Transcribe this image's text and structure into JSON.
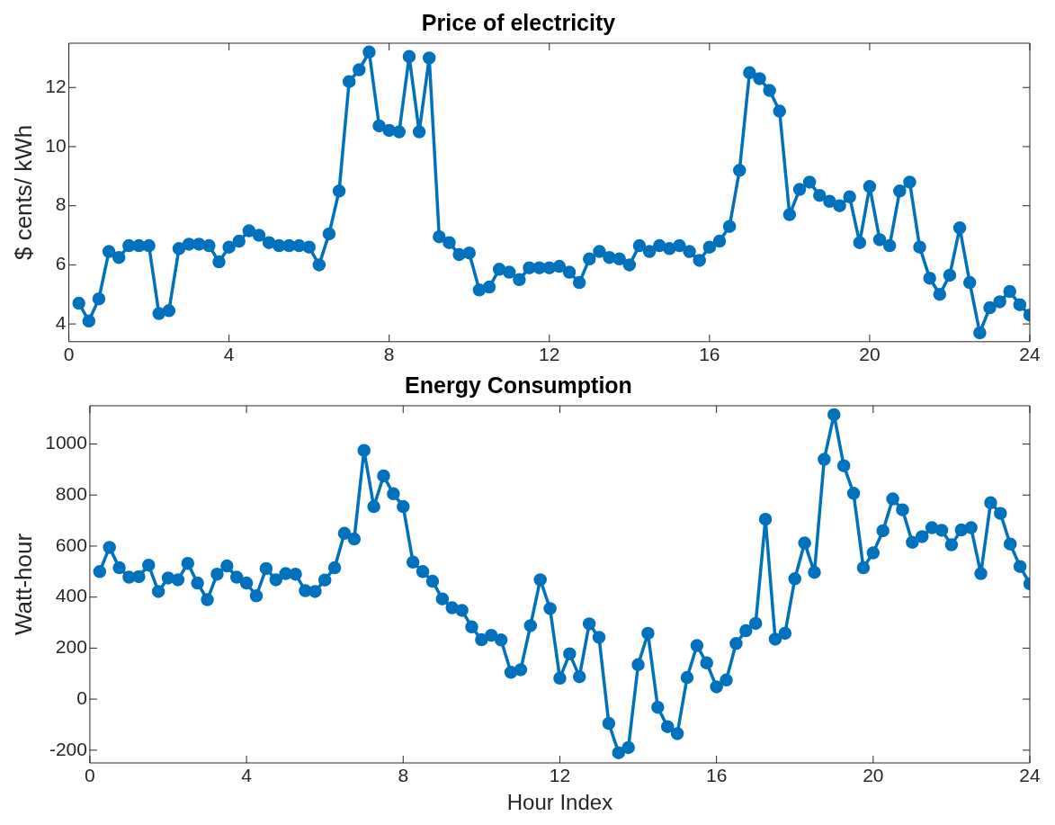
{
  "chart_data": [
    {
      "type": "line",
      "title": "Price of electricity",
      "ylabel": "$ cents/ kWh",
      "x": [
        0.25,
        0.5,
        0.75,
        1,
        1.25,
        1.5,
        1.75,
        2,
        2.25,
        2.5,
        2.75,
        3,
        3.25,
        3.5,
        3.75,
        4,
        4.25,
        4.5,
        4.75,
        5,
        5.25,
        5.5,
        5.75,
        6,
        6.25,
        6.5,
        6.75,
        7,
        7.25,
        7.5,
        7.75,
        8,
        8.25,
        8.5,
        8.75,
        9,
        9.25,
        9.5,
        9.75,
        10,
        10.25,
        10.5,
        10.75,
        11,
        11.25,
        11.5,
        11.75,
        12,
        12.25,
        12.5,
        12.75,
        13,
        13.25,
        13.5,
        13.75,
        14,
        14.25,
        14.5,
        14.75,
        15,
        15.25,
        15.5,
        15.75,
        16,
        16.25,
        16.5,
        16.75,
        17,
        17.25,
        17.5,
        17.75,
        18,
        18.25,
        18.5,
        18.75,
        19,
        19.25,
        19.5,
        19.75,
        20,
        20.25,
        20.5,
        20.75,
        21,
        21.25,
        21.5,
        21.75,
        22,
        22.25,
        22.5,
        22.75,
        23,
        23.25,
        23.5,
        23.75,
        24
      ],
      "series": [
        {
          "color": "#0072bd",
          "values": [
            4.7,
            4.1,
            4.85,
            6.45,
            6.25,
            6.65,
            6.65,
            6.65,
            4.35,
            4.45,
            6.55,
            6.7,
            6.7,
            6.65,
            6.1,
            6.6,
            6.8,
            7.15,
            7.0,
            6.75,
            6.65,
            6.65,
            6.65,
            6.6,
            6.0,
            7.05,
            8.5,
            12.2,
            12.6,
            13.2,
            10.7,
            10.55,
            10.5,
            13.05,
            10.5,
            13.0,
            6.95,
            6.75,
            6.35,
            6.4,
            5.15,
            5.25,
            5.85,
            5.75,
            5.5,
            5.9,
            5.9,
            5.9,
            5.95,
            5.75,
            5.4,
            6.2,
            6.45,
            6.25,
            6.2,
            6.0,
            6.65,
            6.45,
            6.65,
            6.55,
            6.65,
            6.45,
            6.15,
            6.6,
            6.8,
            7.3,
            9.2,
            12.5,
            12.3,
            11.9,
            11.2,
            7.7,
            8.55,
            8.8,
            8.35,
            8.15,
            8.0,
            8.3,
            6.75,
            8.65,
            6.85,
            6.65,
            8.5,
            8.8,
            6.6,
            5.55,
            5.0,
            5.65,
            7.25,
            5.4,
            3.7,
            4.55,
            4.75,
            5.1,
            4.65,
            4.3
          ]
        }
      ],
      "xlim": [
        0,
        24
      ],
      "xticks": [
        0,
        4,
        8,
        12,
        16,
        20,
        24
      ],
      "ylim": [
        3.4,
        13.5
      ],
      "yticks": [
        4,
        6,
        8,
        10,
        12
      ],
      "grid": false,
      "legend": false,
      "marker": "circle",
      "line_style": "solid"
    },
    {
      "type": "line",
      "title": "Energy Consumption",
      "xlabel": "Hour Index",
      "ylabel": "Watt-hour",
      "x": [
        0.25,
        0.5,
        0.75,
        1,
        1.25,
        1.5,
        1.75,
        2,
        2.25,
        2.5,
        2.75,
        3,
        3.25,
        3.5,
        3.75,
        4,
        4.25,
        4.5,
        4.75,
        5,
        5.25,
        5.5,
        5.75,
        6,
        6.25,
        6.5,
        6.75,
        7,
        7.25,
        7.5,
        7.75,
        8,
        8.25,
        8.5,
        8.75,
        9,
        9.25,
        9.5,
        9.75,
        10,
        10.25,
        10.5,
        10.75,
        11,
        11.25,
        11.5,
        11.75,
        12,
        12.25,
        12.5,
        12.75,
        13,
        13.25,
        13.5,
        13.75,
        14,
        14.25,
        14.5,
        14.75,
        15,
        15.25,
        15.5,
        15.75,
        16,
        16.25,
        16.5,
        16.75,
        17,
        17.25,
        17.5,
        17.75,
        18,
        18.25,
        18.5,
        18.75,
        19,
        19.25,
        19.5,
        19.75,
        20,
        20.25,
        20.5,
        20.75,
        21,
        21.25,
        21.5,
        21.75,
        22,
        22.25,
        22.5,
        22.75,
        23,
        23.25,
        23.5,
        23.75,
        24
      ],
      "series": [
        {
          "color": "#0072bd",
          "values": [
            500,
            595,
            515,
            478,
            480,
            525,
            422,
            475,
            468,
            532,
            455,
            390,
            490,
            522,
            478,
            455,
            405,
            512,
            468,
            492,
            490,
            425,
            422,
            467,
            515,
            650,
            628,
            975,
            755,
            875,
            805,
            755,
            537,
            500,
            462,
            393,
            358,
            348,
            283,
            233,
            250,
            232,
            105,
            115,
            288,
            468,
            355,
            82,
            178,
            88,
            295,
            242,
            -95,
            -210,
            -190,
            135,
            258,
            -32,
            -108,
            -135,
            85,
            210,
            142,
            48,
            75,
            218,
            268,
            297,
            705,
            235,
            258,
            472,
            612,
            497,
            940,
            1115,
            915,
            807,
            515,
            573,
            660,
            785,
            742,
            615,
            637,
            672,
            662,
            605,
            663,
            672,
            492,
            770,
            728,
            608,
            520,
            452
          ]
        }
      ],
      "xlim": [
        0,
        24
      ],
      "xticks": [
        0,
        4,
        8,
        12,
        16,
        20,
        24
      ],
      "ylim": [
        -250,
        1150
      ],
      "yticks": [
        -200,
        0,
        200,
        400,
        600,
        800,
        1000
      ],
      "grid": false,
      "legend": false,
      "marker": "circle",
      "line_style": "solid"
    }
  ]
}
